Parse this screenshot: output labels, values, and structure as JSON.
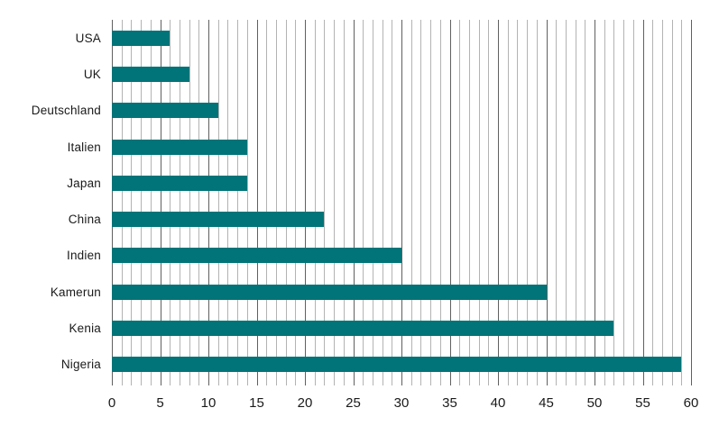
{
  "chart_data": {
    "type": "bar",
    "orientation": "horizontal",
    "title": "",
    "xlabel": "",
    "ylabel": "",
    "categories": [
      "USA",
      "UK",
      "Deutschland",
      "Italien",
      "Japan",
      "China",
      "Indien",
      "Kamerun",
      "Kenia",
      "Nigeria"
    ],
    "values": [
      6,
      8,
      11,
      14,
      14,
      22,
      30,
      45,
      52,
      59
    ],
    "xlim": [
      0,
      60
    ],
    "x_tick_labels": [
      "0",
      "5",
      "10",
      "15",
      "20",
      "25",
      "30",
      "35",
      "40",
      "45",
      "50",
      "55",
      "60"
    ],
    "x_major_tick_step": 5,
    "x_minor_tick_step": 1,
    "grid": "vertical",
    "legend_position": "none",
    "colors": {
      "bar": "#007478",
      "minor_grid": "#b3b3b3",
      "major_grid": "#606060",
      "text": "#1a1a1a",
      "background": "#ffffff"
    }
  }
}
